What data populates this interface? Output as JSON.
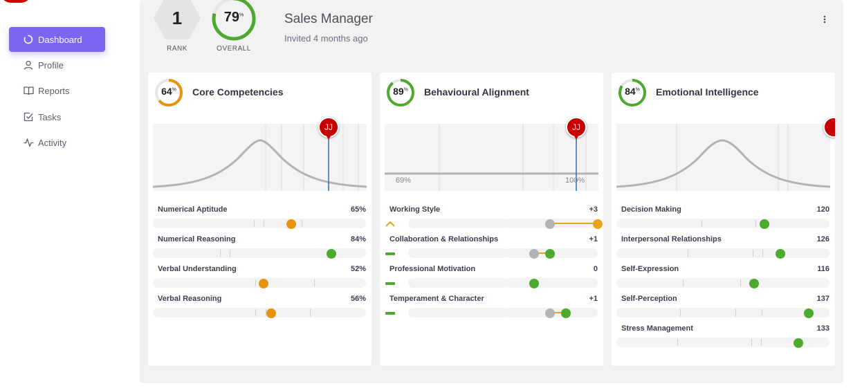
{
  "sidebar": {
    "items": [
      {
        "label": "Dashboard",
        "icon": "spinner-icon",
        "active": true
      },
      {
        "label": "Profile",
        "icon": "user-icon"
      },
      {
        "label": "Reports",
        "icon": "book-icon"
      },
      {
        "label": "Tasks",
        "icon": "checkbox-icon"
      },
      {
        "label": "Activity",
        "icon": "pulse-icon"
      }
    ]
  },
  "header": {
    "rank_value": "1",
    "rank_label": "RANK",
    "overall_value": "79",
    "overall_percent": 79,
    "overall_label": "OVERALL",
    "percent_sign": "%",
    "title": "Sales Manager",
    "subtitle": "Invited 4 months ago",
    "menu_icon": "kebab-menu-icon"
  },
  "cards": [
    {
      "score": "64",
      "score_percent": 64,
      "ring_color": "#e8930c",
      "title": "Core Competencies",
      "marker": "JJ",
      "rows": [
        {
          "label": "Numerical Aptitude",
          "value": "65%"
        },
        {
          "label": "Numerical Reasoning",
          "value": "84%"
        },
        {
          "label": "Verbal Understanding",
          "value": "52%"
        },
        {
          "label": "Verbal Reasoning",
          "value": "56%"
        }
      ]
    },
    {
      "score": "89",
      "score_percent": 89,
      "ring_color": "#4caa2e",
      "title": "Behavioural Alignment",
      "marker": "JJ",
      "axis_left": "69%",
      "axis_right": "100%",
      "rows": [
        {
          "label": "Working Style",
          "value": "+3"
        },
        {
          "label": "Collaboration & Relationships",
          "value": "+1"
        },
        {
          "label": "Professional Motivation",
          "value": "0"
        },
        {
          "label": "Temperament & Character",
          "value": "+1"
        }
      ]
    },
    {
      "score": "84",
      "score_percent": 84,
      "ring_color": "#4caa2e",
      "title": "Emotional Intelligence",
      "rows": [
        {
          "label": "Decision Making",
          "value": "120"
        },
        {
          "label": "Interpersonal Relationships",
          "value": "126"
        },
        {
          "label": "Self-Expression",
          "value": "116"
        },
        {
          "label": "Self-Perception",
          "value": "137"
        },
        {
          "label": "Stress Management",
          "value": "133"
        }
      ]
    }
  ],
  "colors": {
    "accent": "#7a66f3",
    "orange": "#e8930c",
    "green": "#4caa2e",
    "grey_dot": "#b3b3b3",
    "marker": "#c60000",
    "indicator_line": "#2f6db5"
  }
}
